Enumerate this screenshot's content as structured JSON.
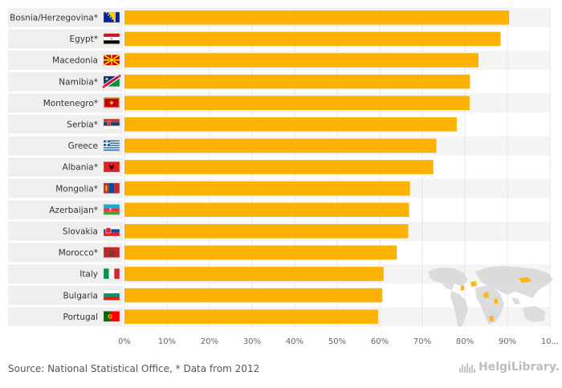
{
  "chart_data": {
    "type": "bar",
    "orientation": "horizontal",
    "categories": [
      "Bosnia/Herzegovina*",
      "Egypt*",
      "Macedonia",
      "Namibia*",
      "Montenegro*",
      "Serbia*",
      "Greece",
      "Albania*",
      "Mongolia*",
      "Azerbaijan*",
      "Slovakia",
      "Morocco*",
      "Italy",
      "Bulgaria",
      "Portugal"
    ],
    "values": [
      90.4,
      88.4,
      83.2,
      81.2,
      81.1,
      78.1,
      73.3,
      72.6,
      67.1,
      66.9,
      66.7,
      64.0,
      60.9,
      60.6,
      59.6
    ],
    "xticks": [
      "0%",
      "10%",
      "20%",
      "30%",
      "40%",
      "50%",
      "60%",
      "70%",
      "80%",
      "90%",
      "10..."
    ],
    "xlim": [
      0,
      100
    ],
    "bar_color": "#FDB100",
    "flags": [
      "bosnia-flag-icon",
      "egypt-flag-icon",
      "macedonia-flag-icon",
      "namibia-flag-icon",
      "montenegro-flag-icon",
      "serbia-flag-icon",
      "greece-flag-icon",
      "albania-flag-icon",
      "mongolia-flag-icon",
      "azerbaijan-flag-icon",
      "slovakia-flag-icon",
      "morocco-flag-icon",
      "italy-flag-icon",
      "bulgaria-flag-icon",
      "portugal-flag-icon"
    ]
  },
  "footer": {
    "source": "Source: National Statistical Office, * Data from 2012",
    "brand": "HelgiLibrary."
  }
}
